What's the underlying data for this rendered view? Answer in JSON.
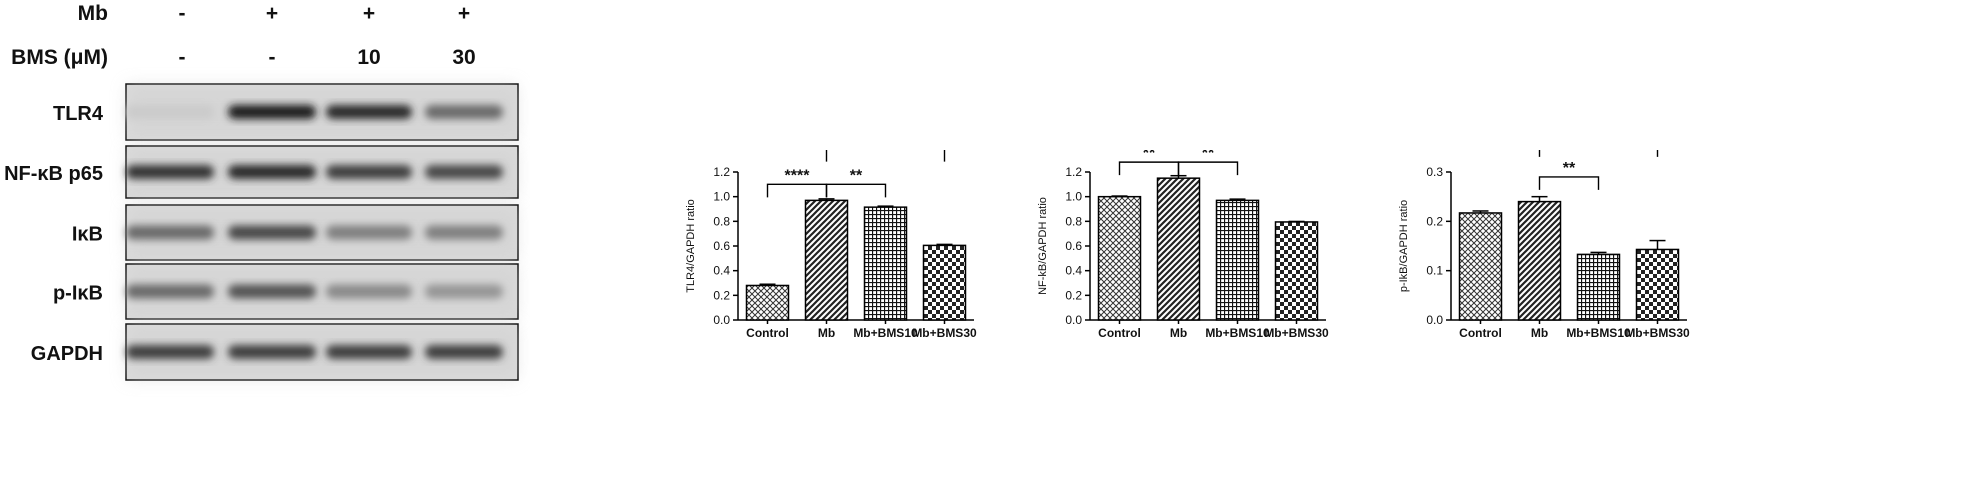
{
  "blot": {
    "conditions": [
      {
        "name": "Mb",
        "values": [
          "-",
          "+",
          "+",
          "+"
        ]
      },
      {
        "name": "BMS (μM)",
        "values": [
          "-",
          "-",
          "10",
          "30"
        ]
      }
    ],
    "bands": [
      {
        "name": "TLR4",
        "intensity": [
          0.15,
          0.95,
          0.9,
          0.6
        ]
      },
      {
        "name": "NF-κB p65",
        "intensity": [
          0.85,
          0.9,
          0.8,
          0.75
        ]
      },
      {
        "name": "IκB",
        "intensity": [
          0.6,
          0.75,
          0.5,
          0.5
        ]
      },
      {
        "name": "p-IκB",
        "intensity": [
          0.6,
          0.7,
          0.45,
          0.4
        ]
      },
      {
        "name": "GAPDH",
        "intensity": [
          0.8,
          0.8,
          0.8,
          0.8
        ]
      }
    ]
  },
  "chart_data": [
    {
      "type": "bar",
      "categories": [
        "Control",
        "Mb",
        "Mb+BMS10",
        "Mb+BMS30"
      ],
      "values": [
        0.28,
        0.97,
        0.915,
        0.605
      ],
      "errors": [
        0.01,
        0.012,
        0.008,
        0.008
      ],
      "ylabel": "TLR4/GAPDH ratio",
      "ylim": [
        0,
        1.2
      ],
      "yticks": [
        "0.0",
        "0.2",
        "0.4",
        "0.6",
        "0.8",
        "1.0",
        "1.2"
      ],
      "patterns": [
        "diamond",
        "diagonal",
        "grid",
        "checker"
      ],
      "significance": [
        {
          "from": 0,
          "to": 1,
          "label": "****",
          "level": 1.1
        },
        {
          "from": 1,
          "to": 2,
          "label": "**",
          "level": 1.1
        },
        {
          "from": 1,
          "to": 3,
          "label": "****",
          "level": 1.39
        }
      ]
    },
    {
      "type": "bar",
      "categories": [
        "Control",
        "Mb",
        "Mb+BMS10",
        "Mb+BMS30"
      ],
      "values": [
        1.0,
        1.15,
        0.97,
        0.795
      ],
      "errors": [
        0.005,
        0.02,
        0.01,
        0.004
      ],
      "ylabel": "NF-kB/GAPDH ratio",
      "ylim": [
        0,
        1.2
      ],
      "yticks": [
        "0.0",
        "0.2",
        "0.4",
        "0.6",
        "0.8",
        "1.0",
        "1.2"
      ],
      "patterns": [
        "diamond",
        "diagonal",
        "grid",
        "checker"
      ],
      "significance": [
        {
          "from": 0,
          "to": 1,
          "label": "**",
          "level": 1.28
        },
        {
          "from": 1,
          "to": 2,
          "label": "**",
          "level": 1.28
        },
        {
          "from": 1,
          "to": 3,
          "label": "***",
          "level": 1.59
        }
      ]
    },
    {
      "type": "bar",
      "categories": [
        "Control",
        "Mb",
        "Mb+BMS10",
        "Mb+BMS30"
      ],
      "values": [
        0.217,
        0.24,
        0.133,
        0.143
      ],
      "errors": [
        0.004,
        0.01,
        0.004,
        0.018
      ],
      "ylabel": "p-IkB/GAPDH ratio",
      "ylim": [
        0,
        0.3
      ],
      "yticks": [
        "0.0",
        "0.1",
        "0.2",
        "0.3"
      ],
      "patterns": [
        "diamond",
        "diagonal",
        "grid",
        "checker"
      ],
      "significance": [
        {
          "from": 1,
          "to": 2,
          "label": "**",
          "level": 0.29
        },
        {
          "from": 1,
          "to": 3,
          "label": "**",
          "level": 0.357
        }
      ]
    }
  ]
}
